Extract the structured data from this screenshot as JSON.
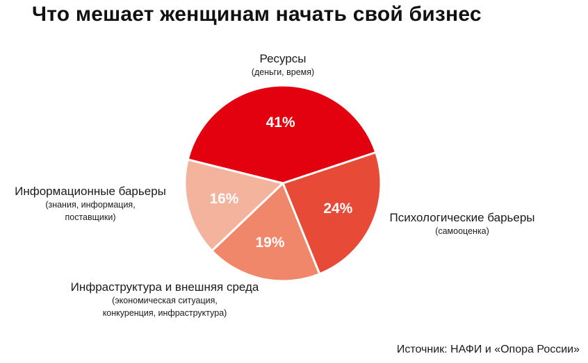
{
  "title": "Что мешает женщинам начать свой бизнес",
  "source": "Источник: НАФИ и «Опора России»",
  "chart_data": {
    "type": "pie",
    "title": "Что мешает женщинам начать свой бизнес",
    "slices": [
      {
        "key": "resources",
        "name": "Ресурсы",
        "detail": [
          "(деньги, время)"
        ],
        "value": 41,
        "value_label": "41%",
        "color": "#e3000f"
      },
      {
        "key": "psych",
        "name": "Психологические барьеры",
        "detail": [
          "(самооценка)"
        ],
        "value": 24,
        "value_label": "24%",
        "color": "#e84a38"
      },
      {
        "key": "infra",
        "name": "Инфраструктура и внешняя среда",
        "detail": [
          "(экономическая ситуация,",
          "конкуренция, инфраструктура)"
        ],
        "value": 19,
        "value_label": "19%",
        "color": "#f0876a"
      },
      {
        "key": "info",
        "name": "Информационные барьеры",
        "detail": [
          "(знания, информация,",
          "поставщики)"
        ],
        "value": 16,
        "value_label": "16%",
        "color": "#f4b39d"
      }
    ]
  }
}
